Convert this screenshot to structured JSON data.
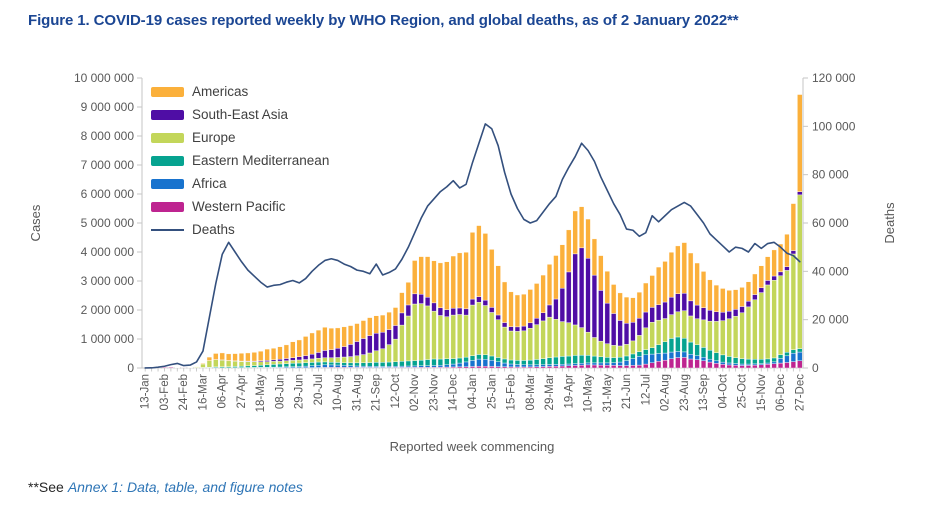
{
  "title": "Figure 1. COVID-19 cases reported weekly by WHO Region, and global deaths, as of 2 January 2022**",
  "footer": {
    "prefix": "**See",
    "link_text": "Annex 1: Data, table, and figure notes"
  },
  "colors": {
    "title_blue": "#1B4693",
    "axis_line": "#C6C6C6",
    "axis_text": "#595959",
    "link_blue": "#2E75B6"
  },
  "chart_data": {
    "type": "bar",
    "subtype": "stacked-bars-with-deaths-line",
    "title": "",
    "xlabel": "Reported week commencing",
    "ylabel_left": "Cases",
    "ylabel_right": "Deaths",
    "y_left": {
      "min": 0,
      "max": 10000000,
      "tick_labels": [
        "0",
        "1 000 000",
        "2 000 000",
        "3 000 000",
        "4 000 000",
        "5 000 000",
        "6 000 000",
        "7 000 000",
        "8 000 000",
        "9 000 000",
        "10 000 000"
      ]
    },
    "y_right": {
      "min": 0,
      "max": 120000,
      "tick_labels": [
        "0",
        "20 000",
        "40 000",
        "60 000",
        "80 000",
        "100 000",
        "120 000"
      ]
    },
    "x_tick_labels": [
      "13-Jan",
      "03-Feb",
      "24-Feb",
      "16-Mar",
      "06-Apr",
      "27-Apr",
      "18-May",
      "08-Jun",
      "29-Jun",
      "20-Jul",
      "10-Aug",
      "31-Aug",
      "21-Sep",
      "12-Oct",
      "02-Nov",
      "23-Nov",
      "14-Dec",
      "04-Jan",
      "25-Jan",
      "15-Feb",
      "08-Mar",
      "29-Mar",
      "19-Apr",
      "10-May",
      "31-May",
      "21-Jun",
      "12-Jul",
      "02-Aug",
      "23-Aug",
      "13-Sep",
      "04-Oct",
      "25-Oct",
      "15-Nov",
      "06-Dec",
      "27-Dec"
    ],
    "x_label_every_n_weeks": 3,
    "grid": false,
    "legend_position": "top-left-inside",
    "legend": [
      {
        "label": "Americas",
        "color": "#FBB03B",
        "type": "bar"
      },
      {
        "label": "South-East Asia",
        "color": "#4F0DA5",
        "type": "bar"
      },
      {
        "label": "Europe",
        "color": "#C3D65A",
        "type": "bar"
      },
      {
        "label": "Eastern Mediterranean",
        "color": "#06A390",
        "type": "bar"
      },
      {
        "label": "Africa",
        "color": "#1873CE",
        "type": "bar"
      },
      {
        "label": "Western Pacific",
        "color": "#BE2490",
        "type": "bar"
      },
      {
        "label": "Deaths",
        "color": "#34507E",
        "type": "line"
      }
    ],
    "stack_order_bottom_to_top": [
      "Western Pacific",
      "Africa",
      "Eastern Mediterranean",
      "Europe",
      "South-East Asia",
      "Americas"
    ],
    "columns": [
      "Americas",
      "South-East Asia",
      "Europe",
      "Eastern Mediterranean",
      "Africa",
      "Western Pacific",
      "Deaths"
    ],
    "values_unit": 1000,
    "weeks_in_thousands": [
      [
        0,
        0,
        0,
        0,
        0,
        0.3,
        0.02
      ],
      [
        0,
        0,
        0,
        0,
        0,
        2.8,
        0.06
      ],
      [
        0,
        0,
        0,
        0,
        0,
        16,
        0.35
      ],
      [
        0,
        0,
        0,
        0,
        0,
        24,
        0.72
      ],
      [
        0,
        0,
        0.1,
        0,
        0,
        28,
        1.4
      ],
      [
        0,
        0,
        0.1,
        0.1,
        0,
        12,
        1.9
      ],
      [
        0.01,
        0.01,
        0.6,
        1,
        0,
        6,
        1
      ],
      [
        0.05,
        0.02,
        4,
        6,
        0.01,
        4,
        1.2
      ],
      [
        2,
        0.1,
        25,
        8,
        0.1,
        3,
        2.5
      ],
      [
        25,
        0.5,
        120,
        15,
        1,
        3,
        7
      ],
      [
        120,
        1.5,
        230,
        20,
        3,
        3,
        21
      ],
      [
        210,
        3,
        250,
        30,
        5,
        3,
        35
      ],
      [
        240,
        6,
        230,
        35,
        6,
        2.5,
        47
      ],
      [
        230,
        10,
        200,
        38,
        7,
        2.5,
        52
      ],
      [
        250,
        13,
        180,
        42,
        9,
        2.5,
        48
      ],
      [
        270,
        15,
        160,
        50,
        11,
        3,
        44
      ],
      [
        280,
        20,
        145,
        58,
        13,
        3,
        40.5
      ],
      [
        300,
        26,
        130,
        65,
        15,
        3.5,
        38
      ],
      [
        330,
        33,
        120,
        75,
        18,
        4,
        35.5
      ],
      [
        390,
        42,
        110,
        85,
        21,
        4,
        33.5
      ],
      [
        400,
        52,
        105,
        95,
        25,
        4.5,
        34.2
      ],
      [
        430,
        65,
        100,
        105,
        29,
        5,
        34.5
      ],
      [
        470,
        78,
        100,
        110,
        33,
        6,
        35.5
      ],
      [
        550,
        92,
        100,
        118,
        38,
        7,
        36.2
      ],
      [
        580,
        110,
        105,
        120,
        44,
        8,
        35.2
      ],
      [
        660,
        135,
        110,
        118,
        55,
        10,
        37
      ],
      [
        730,
        165,
        120,
        115,
        65,
        13,
        40
      ],
      [
        770,
        200,
        130,
        110,
        80,
        16,
        42.5
      ],
      [
        800,
        250,
        145,
        100,
        90,
        20,
        44.5
      ],
      [
        740,
        280,
        155,
        92,
        85,
        22,
        45.2
      ],
      [
        700,
        320,
        170,
        90,
        78,
        24,
        44.5
      ],
      [
        680,
        360,
        195,
        92,
        68,
        24,
        43
      ],
      [
        650,
        420,
        215,
        98,
        58,
        22,
        42
      ],
      [
        620,
        490,
        245,
        108,
        50,
        20,
        40.5
      ],
      [
        620,
        555,
        280,
        118,
        45,
        19,
        40
      ],
      [
        620,
        600,
        330,
        128,
        42,
        18,
        39
      ],
      [
        600,
        605,
        400,
        138,
        40,
        17,
        43
      ],
      [
        590,
        570,
        470,
        140,
        38,
        17,
        38.5
      ],
      [
        600,
        520,
        600,
        148,
        40,
        18,
        39.5
      ],
      [
        620,
        470,
        780,
        155,
        42,
        19,
        41
      ],
      [
        700,
        420,
        1250,
        165,
        45,
        20,
        45
      ],
      [
        780,
        380,
        1550,
        175,
        48,
        21,
        50
      ],
      [
        1150,
        350,
        1950,
        185,
        50,
        22,
        56
      ],
      [
        1300,
        320,
        1950,
        195,
        52,
        24,
        62
      ],
      [
        1400,
        300,
        1850,
        210,
        55,
        26,
        67
      ],
      [
        1450,
        285,
        1650,
        225,
        58,
        28,
        70
      ],
      [
        1550,
        265,
        1500,
        215,
        65,
        30,
        73
      ],
      [
        1650,
        245,
        1450,
        205,
        80,
        33,
        75
      ],
      [
        1800,
        235,
        1500,
        190,
        100,
        36,
        77.5
      ],
      [
        1900,
        225,
        1500,
        175,
        130,
        40,
        74.5
      ],
      [
        1950,
        215,
        1450,
        165,
        165,
        45,
        76
      ],
      [
        2300,
        205,
        1750,
        160,
        210,
        52,
        85
      ],
      [
        2450,
        195,
        1800,
        158,
        250,
        58,
        93
      ],
      [
        2300,
        185,
        1700,
        155,
        240,
        60,
        101
      ],
      [
        2000,
        175,
        1500,
        150,
        210,
        55,
        99
      ],
      [
        1700,
        165,
        1300,
        145,
        170,
        48,
        92
      ],
      [
        1400,
        155,
        1100,
        140,
        130,
        42,
        81
      ],
      [
        1200,
        150,
        1000,
        138,
        100,
        38,
        72
      ],
      [
        1100,
        155,
        1000,
        142,
        85,
        36,
        66
      ],
      [
        1100,
        165,
        1020,
        150,
        75,
        36,
        61.5
      ],
      [
        1150,
        185,
        1100,
        165,
        70,
        38,
        60
      ],
      [
        1200,
        220,
        1200,
        185,
        68,
        42,
        61
      ],
      [
        1300,
        280,
        1300,
        210,
        66,
        48,
        64.5
      ],
      [
        1400,
        420,
        1400,
        235,
        64,
        55,
        68
      ],
      [
        1500,
        700,
        1300,
        255,
        62,
        62,
        71
      ],
      [
        1500,
        1150,
        1200,
        270,
        60,
        70,
        78
      ],
      [
        1450,
        1750,
        1150,
        275,
        60,
        78,
        83
      ],
      [
        1480,
        2450,
        1050,
        285,
        62,
        88,
        87.5
      ],
      [
        1420,
        2750,
        950,
        280,
        65,
        98,
        93
      ],
      [
        1350,
        2550,
        800,
        260,
        68,
        108,
        90
      ],
      [
        1250,
        2150,
        640,
        235,
        72,
        105,
        85.5
      ],
      [
        1200,
        1750,
        540,
        210,
        76,
        100,
        79
      ],
      [
        1100,
        1400,
        470,
        190,
        82,
        95,
        73.5
      ],
      [
        1000,
        1100,
        420,
        175,
        95,
        90,
        68
      ],
      [
        950,
        880,
        390,
        165,
        120,
        85,
        63.5
      ],
      [
        900,
        730,
        400,
        160,
        170,
        85,
        57.5
      ],
      [
        850,
        640,
        450,
        160,
        235,
        90,
        57
      ],
      [
        900,
        590,
        560,
        165,
        300,
        100,
        54.5
      ],
      [
        1000,
        545,
        750,
        180,
        320,
        135,
        56
      ],
      [
        1100,
        510,
        880,
        220,
        300,
        180,
        63
      ],
      [
        1300,
        530,
        850,
        300,
        270,
        230,
        60.5
      ],
      [
        1400,
        570,
        800,
        390,
        245,
        270,
        63
      ],
      [
        1550,
        600,
        820,
        470,
        230,
        320,
        65.5
      ],
      [
        1650,
        620,
        870,
        500,
        210,
        360,
        67
      ],
      [
        1750,
        600,
        950,
        470,
        190,
        365,
        68.5
      ],
      [
        1650,
        520,
        900,
        420,
        165,
        310,
        67
      ],
      [
        1450,
        470,
        900,
        375,
        140,
        285,
        63.5
      ],
      [
        1250,
        420,
        950,
        340,
        120,
        250,
        60
      ],
      [
        1050,
        375,
        1000,
        310,
        100,
        205,
        55.5
      ],
      [
        920,
        330,
        1080,
        280,
        88,
        160,
        53
      ],
      [
        820,
        290,
        1180,
        250,
        78,
        125,
        50.5
      ],
      [
        720,
        260,
        1300,
        225,
        68,
        105,
        48
      ],
      [
        680,
        235,
        1430,
        205,
        60,
        92,
        50
      ],
      [
        660,
        215,
        1580,
        188,
        52,
        85,
        49.5
      ],
      [
        670,
        195,
        1800,
        172,
        46,
        90,
        48
      ],
      [
        710,
        180,
        2050,
        160,
        42,
        100,
        51.5
      ],
      [
        760,
        165,
        2300,
        150,
        40,
        110,
        49.5
      ],
      [
        820,
        155,
        2550,
        142,
        42,
        130,
        51.5
      ],
      [
        900,
        145,
        2680,
        135,
        62,
        150,
        52
      ],
      [
        960,
        135,
        2720,
        130,
        160,
        170,
        50
      ],
      [
        1120,
        128,
        2820,
        125,
        230,
        190,
        47.5
      ],
      [
        1620,
        118,
        3300,
        122,
        290,
        220,
        46.5
      ],
      [
        3350,
        110,
        5300,
        120,
        300,
        250,
        44
      ]
    ]
  }
}
